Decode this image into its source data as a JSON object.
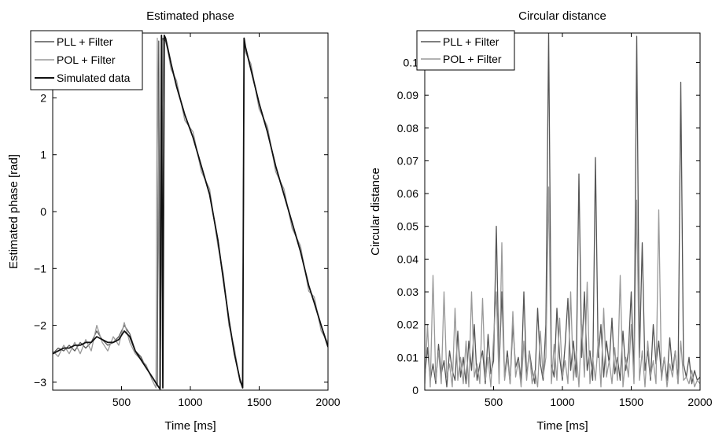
{
  "chart_data": [
    {
      "type": "line",
      "title": "Estimated phase",
      "xlabel": "Time [ms]",
      "ylabel": "Estimated phase [rad]",
      "xlim": [
        0,
        2000
      ],
      "ylim": [
        -3.14,
        3.14
      ],
      "xticks": [
        500,
        1000,
        1500,
        2000
      ],
      "xtick_labels": [
        "500",
        "1000",
        "1500",
        "2000"
      ],
      "yticks": [
        -3,
        -2,
        -1,
        0,
        1,
        2
      ],
      "ytick_labels": [
        "−3",
        "−2",
        "−1",
        "0",
        "1",
        "2"
      ],
      "grid": false,
      "legend_position": "top-left",
      "series": [
        {
          "name": "PLL + Filter",
          "color": "#555555",
          "x": [
            0,
            40,
            80,
            120,
            160,
            200,
            240,
            280,
            320,
            360,
            400,
            440,
            480,
            520,
            560,
            600,
            640,
            680,
            720,
            760,
            770,
            780,
            800,
            820,
            860,
            900,
            960,
            1020,
            1080,
            1140,
            1200,
            1240,
            1280,
            1320,
            1360,
            1380,
            1390,
            1400,
            1440,
            1500,
            1560,
            1620,
            1680,
            1740,
            1800,
            1860,
            1900,
            1950,
            2000
          ],
          "y": [
            -2.5,
            -2.4,
            -2.45,
            -2.35,
            -2.45,
            -2.3,
            -2.4,
            -2.3,
            -2.1,
            -2.25,
            -2.35,
            -2.3,
            -2.2,
            -2.0,
            -2.15,
            -2.45,
            -2.55,
            -2.75,
            -2.9,
            -3.05,
            3.0,
            -3.1,
            3.05,
            3.0,
            2.6,
            2.2,
            1.7,
            1.3,
            0.8,
            0.3,
            -0.5,
            -1.2,
            -1.9,
            -2.5,
            -2.95,
            -3.1,
            3.0,
            2.9,
            2.5,
            1.9,
            1.4,
            0.8,
            0.3,
            -0.2,
            -0.7,
            -1.3,
            -1.6,
            -2.0,
            -2.35
          ]
        },
        {
          "name": "POL + Filter",
          "color": "#999999",
          "x": [
            0,
            40,
            80,
            120,
            160,
            200,
            240,
            280,
            320,
            360,
            400,
            440,
            480,
            520,
            560,
            600,
            640,
            680,
            720,
            750,
            760,
            780,
            800,
            820,
            860,
            900,
            960,
            1020,
            1080,
            1140,
            1200,
            1240,
            1280,
            1320,
            1360,
            1380,
            1390,
            1400,
            1440,
            1500,
            1560,
            1620,
            1680,
            1740,
            1800,
            1860,
            1900,
            1950,
            2000
          ],
          "y": [
            -2.45,
            -2.55,
            -2.35,
            -2.5,
            -2.3,
            -2.5,
            -2.25,
            -2.45,
            -2.0,
            -2.3,
            -2.45,
            -2.2,
            -2.35,
            -1.95,
            -2.3,
            -2.5,
            -2.6,
            -2.7,
            -2.95,
            -3.1,
            3.05,
            -3.05,
            3.0,
            3.05,
            2.5,
            2.3,
            1.6,
            1.4,
            0.7,
            0.4,
            -0.6,
            -1.1,
            -2.0,
            -2.4,
            -3.0,
            -3.05,
            3.05,
            2.8,
            2.6,
            1.8,
            1.5,
            0.7,
            0.4,
            -0.3,
            -0.6,
            -1.4,
            -1.5,
            -2.1,
            -2.3
          ]
        },
        {
          "name": "Simulated data",
          "color": "#111111",
          "x": [
            0,
            40,
            80,
            120,
            160,
            200,
            240,
            280,
            320,
            360,
            400,
            440,
            480,
            520,
            560,
            600,
            640,
            680,
            720,
            760,
            780,
            790,
            800,
            810,
            820,
            860,
            900,
            960,
            1020,
            1080,
            1140,
            1200,
            1240,
            1280,
            1320,
            1360,
            1380,
            1390,
            1400,
            1440,
            1500,
            1560,
            1620,
            1680,
            1740,
            1800,
            1860,
            1900,
            1950,
            2000
          ],
          "y": [
            -2.5,
            -2.45,
            -2.4,
            -2.4,
            -2.35,
            -2.35,
            -2.3,
            -2.3,
            -2.2,
            -2.25,
            -2.3,
            -2.3,
            -2.25,
            -2.1,
            -2.2,
            -2.45,
            -2.6,
            -2.75,
            -2.9,
            -3.05,
            -3.12,
            3.1,
            -3.1,
            3.1,
            3.05,
            2.6,
            2.2,
            1.7,
            1.3,
            0.8,
            0.3,
            -0.5,
            -1.2,
            -1.9,
            -2.5,
            -2.95,
            -3.1,
            3.05,
            2.9,
            2.5,
            1.9,
            1.4,
            0.8,
            0.3,
            -0.2,
            -0.7,
            -1.3,
            -1.6,
            -2.0,
            -2.38
          ]
        }
      ]
    },
    {
      "type": "line",
      "title": "Circular distance",
      "xlabel": "Time [ms]",
      "ylabel": "Circular distance",
      "xlim": [
        0,
        2000
      ],
      "ylim": [
        0,
        0.109
      ],
      "xticks": [
        500,
        1000,
        1500,
        2000
      ],
      "xtick_labels": [
        "500",
        "1000",
        "1500",
        "2000"
      ],
      "yticks": [
        0,
        0.01,
        0.02,
        0.03,
        0.04,
        0.05,
        0.06,
        0.07,
        0.08,
        0.09,
        0.1
      ],
      "ytick_labels": [
        "0",
        "0.01",
        "0.02",
        "0.03",
        "0.04",
        "0.05",
        "0.06",
        "0.07",
        "0.08",
        "0.09",
        "0.1"
      ],
      "grid": false,
      "legend_position": "top-left",
      "series": [
        {
          "name": "PLL + Filter",
          "color": "#555555",
          "x": [
            0,
            20,
            40,
            60,
            80,
            100,
            120,
            140,
            160,
            180,
            200,
            220,
            240,
            260,
            280,
            300,
            320,
            340,
            360,
            380,
            400,
            420,
            440,
            460,
            480,
            500,
            520,
            540,
            560,
            580,
            600,
            620,
            640,
            660,
            680,
            700,
            720,
            740,
            760,
            780,
            800,
            820,
            840,
            860,
            880,
            900,
            920,
            940,
            960,
            980,
            1000,
            1020,
            1040,
            1060,
            1080,
            1100,
            1120,
            1140,
            1160,
            1180,
            1200,
            1220,
            1240,
            1260,
            1280,
            1300,
            1320,
            1340,
            1360,
            1380,
            1400,
            1420,
            1440,
            1460,
            1480,
            1500,
            1520,
            1540,
            1560,
            1580,
            1600,
            1620,
            1640,
            1660,
            1680,
            1700,
            1720,
            1740,
            1760,
            1780,
            1800,
            1820,
            1840,
            1860,
            1880,
            1900,
            1920,
            1940,
            1960,
            1980,
            2000
          ],
          "y": [
            0.004,
            0.013,
            0.003,
            0.008,
            0.002,
            0.014,
            0.005,
            0.009,
            0.001,
            0.012,
            0.006,
            0.003,
            0.018,
            0.004,
            0.01,
            0.002,
            0.015,
            0.006,
            0.02,
            0.003,
            0.008,
            0.012,
            0.002,
            0.017,
            0.005,
            0.009,
            0.05,
            0.006,
            0.03,
            0.004,
            0.012,
            0.002,
            0.02,
            0.007,
            0.01,
            0.003,
            0.03,
            0.004,
            0.012,
            0.006,
            0.002,
            0.025,
            0.008,
            0.003,
            0.02,
            0.109,
            0.008,
            0.004,
            0.025,
            0.01,
            0.003,
            0.014,
            0.028,
            0.006,
            0.015,
            0.004,
            0.066,
            0.01,
            0.03,
            0.006,
            0.012,
            0.003,
            0.071,
            0.01,
            0.02,
            0.004,
            0.015,
            0.008,
            0.022,
            0.005,
            0.01,
            0.003,
            0.018,
            0.006,
            0.012,
            0.03,
            0.004,
            0.108,
            0.01,
            0.045,
            0.006,
            0.012,
            0.003,
            0.02,
            0.008,
            0.015,
            0.004,
            0.01,
            0.003,
            0.016,
            0.006,
            0.012,
            0.002,
            0.094,
            0.008,
            0.004,
            0.01,
            0.002,
            0.006,
            0.003,
            0.004
          ]
        },
        {
          "name": "POL + Filter",
          "color": "#999999",
          "x": [
            0,
            20,
            40,
            60,
            80,
            100,
            120,
            140,
            160,
            180,
            200,
            220,
            240,
            260,
            280,
            300,
            320,
            340,
            360,
            380,
            400,
            420,
            440,
            460,
            480,
            500,
            520,
            540,
            560,
            580,
            600,
            620,
            640,
            660,
            680,
            700,
            720,
            740,
            760,
            780,
            800,
            820,
            840,
            860,
            880,
            900,
            920,
            940,
            960,
            980,
            1000,
            1020,
            1040,
            1060,
            1080,
            1100,
            1120,
            1140,
            1160,
            1180,
            1200,
            1220,
            1240,
            1260,
            1280,
            1300,
            1320,
            1340,
            1360,
            1380,
            1400,
            1420,
            1440,
            1460,
            1480,
            1500,
            1520,
            1540,
            1560,
            1580,
            1600,
            1620,
            1640,
            1660,
            1680,
            1700,
            1720,
            1740,
            1760,
            1780,
            1800,
            1820,
            1840,
            1860,
            1880,
            1900,
            1920,
            1940,
            1960,
            1980,
            2000
          ],
          "y": [
            0.002,
            0.02,
            0.001,
            0.035,
            0.003,
            0.012,
            0.002,
            0.03,
            0.004,
            0.008,
            0.001,
            0.025,
            0.003,
            0.01,
            0.002,
            0.015,
            0.001,
            0.03,
            0.004,
            0.008,
            0.002,
            0.028,
            0.003,
            0.01,
            0.001,
            0.016,
            0.03,
            0.002,
            0.045,
            0.003,
            0.01,
            0.002,
            0.024,
            0.004,
            0.009,
            0.001,
            0.015,
            0.003,
            0.012,
            0.002,
            0.006,
            0.001,
            0.018,
            0.004,
            0.01,
            0.062,
            0.002,
            0.014,
            0.003,
            0.022,
            0.004,
            0.009,
            0.002,
            0.03,
            0.003,
            0.012,
            0.001,
            0.02,
            0.004,
            0.033,
            0.002,
            0.01,
            0.003,
            0.015,
            0.001,
            0.025,
            0.004,
            0.009,
            0.002,
            0.013,
            0.003,
            0.035,
            0.001,
            0.01,
            0.004,
            0.02,
            0.002,
            0.058,
            0.003,
            0.012,
            0.001,
            0.015,
            0.004,
            0.009,
            0.002,
            0.055,
            0.003,
            0.01,
            0.001,
            0.008,
            0.004,
            0.012,
            0.002,
            0.015,
            0.003,
            0.004,
            0.002,
            0.006,
            0.001,
            0.003,
            0.002
          ]
        }
      ]
    }
  ]
}
